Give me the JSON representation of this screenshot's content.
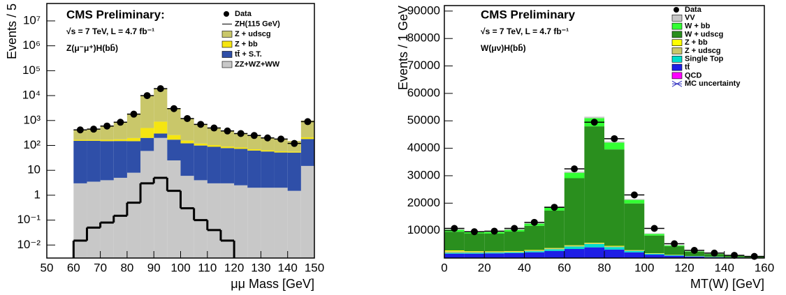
{
  "chart_data": [
    {
      "type": "histogram",
      "log_y": true,
      "title": "CMS Preliminary:",
      "subtitle": "√s = 7 TeV, L = 4.7 fb⁻¹",
      "annotation": "Z(μ⁻μ⁺)H(bb̄)",
      "xlabel": "μμ Mass [GeV]",
      "ylabel": "Events / 5",
      "xlim": [
        50,
        150
      ],
      "xticks": [
        50,
        60,
        70,
        80,
        90,
        100,
        110,
        120,
        130,
        140,
        150
      ],
      "ylim": [
        0.003,
        50000000
      ],
      "yticks": [
        {
          "value": 0.01,
          "label": "10⁻²"
        },
        {
          "value": 0.1,
          "label": "10⁻¹"
        },
        1,
        10,
        {
          "value": 100,
          "label": "10²"
        },
        {
          "value": 1000,
          "label": "10³"
        },
        {
          "value": 10000,
          "label": "10⁴"
        },
        {
          "value": 100000,
          "label": "10⁵"
        },
        {
          "value": 1000000,
          "label": "10⁶"
        },
        {
          "value": 10000000,
          "label": "10⁷"
        }
      ],
      "bins": [
        60,
        65,
        70,
        75,
        80,
        85,
        90,
        95,
        100,
        105,
        110,
        115,
        120,
        125,
        130,
        135,
        140,
        145,
        150
      ],
      "stack": [
        {
          "name": "ZZ+WZ+WW",
          "color": "#c8c8c8",
          "values": [
            3,
            3.5,
            4,
            5,
            8,
            60,
            200,
            25,
            6,
            4,
            3,
            3,
            2.5,
            2,
            2,
            2,
            1.5,
            15
          ]
        },
        {
          "name": "tt̄ + S.T.",
          "color": "#2f4fa8",
          "values": [
            150,
            150,
            145,
            145,
            140,
            140,
            100,
            145,
            115,
            95,
            85,
            75,
            70,
            60,
            55,
            50,
            50,
            165
          ]
        },
        {
          "name": "Z + bb",
          "color": "#f5e511",
          "values": [
            15,
            15,
            20,
            25,
            50,
            300,
            600,
            90,
            35,
            20,
            15,
            12,
            10,
            8,
            7,
            6,
            5,
            30
          ]
        },
        {
          "name": "Z + udscg",
          "color": "#c9c76a",
          "values": [
            250,
            280,
            430,
            675,
            1600,
            9500,
            18100,
            2740,
            1045,
            580,
            395,
            290,
            218,
            180,
            136,
            122,
            94,
            790
          ]
        }
      ],
      "signal": {
        "name": "ZH(115 GeV)",
        "color": "#000000",
        "values": [
          0.015,
          0.05,
          0.08,
          0.15,
          0.5,
          3,
          5,
          1.5,
          0.3,
          0.1,
          0.04,
          0.015,
          null,
          null,
          null,
          null,
          null,
          null
        ]
      },
      "data": {
        "name": "Data",
        "color": "#000000",
        "values": [
          420,
          450,
          600,
          850,
          1800,
          10000,
          19000,
          3000,
          1200,
          700,
          500,
          380,
          300,
          250,
          200,
          180,
          120,
          900
        ]
      }
    },
    {
      "type": "histogram",
      "log_y": false,
      "title": "CMS Preliminary",
      "subtitle": "√s = 7 TeV, L = 4.7 fb⁻¹",
      "annotation": "W(μν)H(bb̄)",
      "xlabel": "MT(W) [GeV]",
      "ylabel": "Events / 1 GeV",
      "xlim": [
        0,
        160
      ],
      "xticks": [
        0,
        20,
        40,
        60,
        80,
        100,
        120,
        140,
        160
      ],
      "ylim": [
        0,
        92000
      ],
      "yticks": [
        10000,
        20000,
        30000,
        40000,
        50000,
        60000,
        70000,
        80000,
        90000
      ],
      "bins": [
        0,
        10,
        20,
        30,
        40,
        50,
        60,
        70,
        80,
        90,
        100,
        110,
        120,
        130,
        140,
        150,
        160
      ],
      "stack": [
        {
          "name": "QCD",
          "color": "#ff00ff",
          "values": [
            100,
            100,
            100,
            100,
            100,
            100,
            100,
            100,
            100,
            80,
            50,
            30,
            20,
            10,
            5,
            5
          ]
        },
        {
          "name": "tt̄",
          "color": "#1e1ee6",
          "values": [
            1500,
            1500,
            1600,
            1700,
            2000,
            2500,
            3200,
            3800,
            3000,
            2000,
            1200,
            800,
            500,
            300,
            200,
            100
          ]
        },
        {
          "name": "Single Top",
          "color": "#00ddcc",
          "values": [
            300,
            300,
            300,
            300,
            400,
            600,
            900,
            1200,
            900,
            500,
            300,
            200,
            100,
            80,
            50,
            30
          ]
        },
        {
          "name": "Z + udscg",
          "color": "#c9c76a",
          "values": [
            600,
            400,
            300,
            300,
            300,
            300,
            300,
            300,
            300,
            200,
            150,
            100,
            60,
            40,
            20,
            10
          ]
        },
        {
          "name": "Z + bb",
          "color": "#ffff00",
          "values": [
            300,
            200,
            150,
            150,
            150,
            150,
            150,
            150,
            150,
            100,
            80,
            50,
            30,
            20,
            10,
            5
          ]
        },
        {
          "name": "W + udscg",
          "color": "#2a8f1e",
          "values": [
            6800,
            6500,
            6450,
            7100,
            8800,
            13650,
            24450,
            42450,
            35150,
            17020,
            6420,
            3120,
            1580,
            1010,
            545,
            305
          ]
        },
        {
          "name": "W + bb",
          "color": "#33ff33",
          "values": [
            700,
            600,
            600,
            650,
            800,
            1200,
            2000,
            3000,
            2500,
            1300,
            600,
            300,
            150,
            100,
            50,
            30
          ]
        },
        {
          "name": "VV",
          "color": "#c8c8c8",
          "values": [
            200,
            200,
            200,
            200,
            250,
            300,
            400,
            500,
            400,
            300,
            200,
            100,
            60,
            40,
            20,
            15
          ]
        }
      ],
      "data": {
        "name": "Data",
        "color": "#000000",
        "values": [
          10800,
          9600,
          9800,
          10800,
          13000,
          18500,
          32500,
          49500,
          43500,
          23000,
          10800,
          5200,
          2800,
          1800,
          1000,
          600
        ]
      },
      "uncertainty_label": "MC uncertainty"
    }
  ]
}
